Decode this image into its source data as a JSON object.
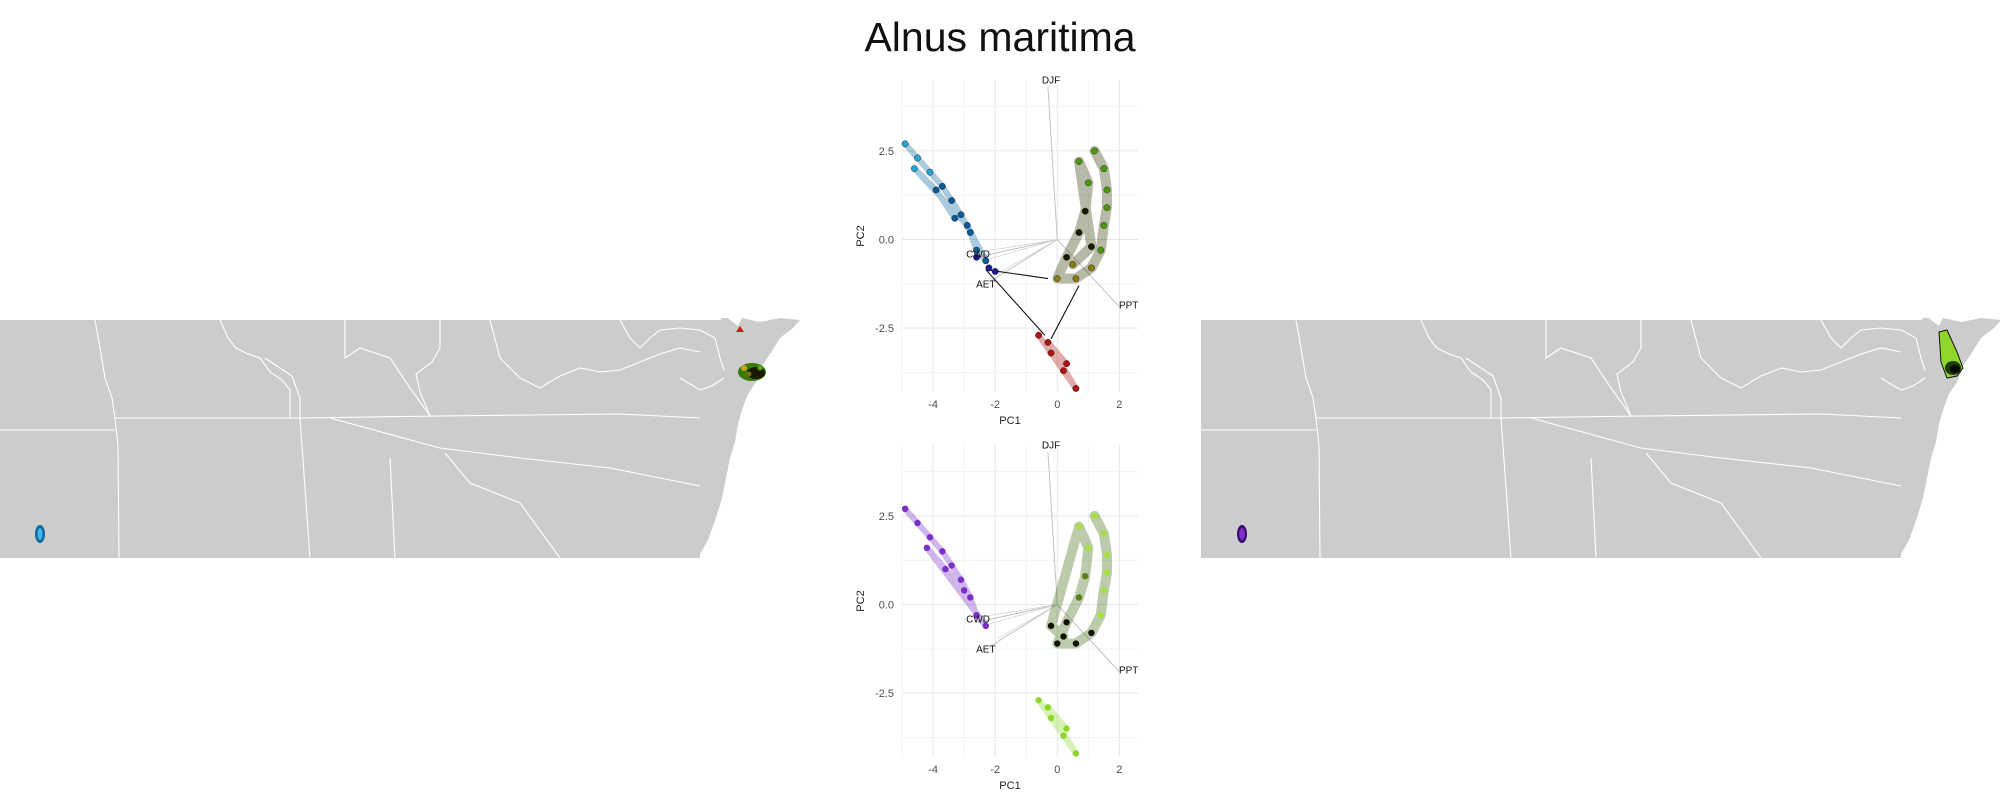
{
  "title": "Alnus maritima",
  "colors": {
    "land": "#cccccc",
    "border": "#ffffff",
    "cluster_blue": "#0b6aa0",
    "cluster_navy": "#1a1a8c",
    "cluster_red": "#b01212",
    "cluster_green": "#4a9a0a",
    "cluster_purple": "#7b2fc9",
    "cluster_lime": "#8ed62a"
  },
  "maps": [
    {
      "name": "left-map",
      "occurrence_clusters": [
        "blue",
        "green-yellow",
        "red"
      ]
    },
    {
      "name": "right-map",
      "occurrence_clusters": [
        "purple",
        "lime-black"
      ]
    }
  ],
  "chart_data": [
    {
      "type": "scatter",
      "name": "pca-top",
      "title": "",
      "xlabel": "PC1",
      "ylabel": "PC2",
      "xlim": [
        -5.0,
        2.6
      ],
      "ylim": [
        -4.3,
        4.5
      ],
      "xticks": [
        -4,
        -2,
        0,
        2
      ],
      "yticks": [
        2.5,
        0.0,
        -2.5
      ],
      "xtick_labels": [
        "-4",
        "-2",
        "0",
        "2"
      ],
      "ytick_labels": [
        "2.5",
        "0.0",
        "-2.5"
      ],
      "grid": true,
      "hull_outlines": true,
      "clusters": [
        {
          "color": "blue",
          "points": [
            [
              -4.9,
              2.7
            ],
            [
              -4.5,
              2.3
            ],
            [
              -4.1,
              1.9
            ],
            [
              -3.7,
              1.5
            ],
            [
              -3.4,
              1.1
            ],
            [
              -3.1,
              0.7
            ],
            [
              -2.8,
              0.2
            ],
            [
              -2.6,
              -0.3
            ],
            [
              -2.3,
              -0.6
            ],
            [
              -2.9,
              0.4
            ],
            [
              -4.6,
              2.0
            ],
            [
              -3.9,
              1.4
            ],
            [
              -3.3,
              0.6
            ]
          ]
        },
        {
          "color": "navy",
          "points": [
            [
              -2.6,
              -0.5
            ],
            [
              -2.2,
              -0.8
            ],
            [
              -2.0,
              -0.9
            ]
          ]
        },
        {
          "color": "red",
          "points": [
            [
              -0.6,
              -2.7
            ],
            [
              -0.2,
              -3.2
            ],
            [
              0.2,
              -3.7
            ],
            [
              0.6,
              -4.2
            ],
            [
              -0.3,
              -2.9
            ],
            [
              0.3,
              -3.5
            ]
          ]
        },
        {
          "color": "green-black",
          "points": [
            [
              1.2,
              2.5
            ],
            [
              1.5,
              2.0
            ],
            [
              1.6,
              1.4
            ],
            [
              1.6,
              0.9
            ],
            [
              1.5,
              0.4
            ],
            [
              1.4,
              -0.3
            ],
            [
              1.1,
              -0.8
            ],
            [
              0.6,
              -1.1
            ],
            [
              0.0,
              -1.1
            ],
            [
              0.3,
              -0.5
            ],
            [
              0.7,
              0.2
            ],
            [
              0.9,
              0.8
            ],
            [
              1.0,
              1.6
            ],
            [
              0.7,
              2.2
            ],
            [
              1.1,
              -0.2
            ],
            [
              0.5,
              -0.7
            ]
          ]
        }
      ],
      "hull_edges": [
        [
          [
            -2.3,
            -0.85
          ],
          [
            -0.3,
            -1.1
          ]
        ],
        [
          [
            -2.3,
            -0.85
          ],
          [
            -0.4,
            -2.7
          ]
        ],
        [
          [
            0.7,
            -1.3
          ],
          [
            -0.2,
            -2.8
          ]
        ]
      ],
      "variables": [
        {
          "label": "DJF",
          "x": -0.3,
          "y": 4.3
        },
        {
          "label": "AET",
          "x": -2.2,
          "y": -1.2
        },
        {
          "label": "CWD",
          "x": -2.6,
          "y": -0.5
        },
        {
          "label": "PPT",
          "x": 2.0,
          "y": -1.9
        }
      ],
      "variable_labels_at": [
        {
          "label": "DJF",
          "x": -0.2,
          "y": 4.4
        },
        {
          "label": "AET",
          "x": -2.3,
          "y": -1.35
        },
        {
          "label": "CWD",
          "x": -2.55,
          "y": -0.5
        },
        {
          "label": "PPT",
          "x": 2.3,
          "y": -1.95
        }
      ]
    },
    {
      "type": "scatter",
      "name": "pca-bottom",
      "title": "",
      "xlabel": "PC1",
      "ylabel": "PC2",
      "xlim": [
        -5.0,
        2.6
      ],
      "ylim": [
        -4.3,
        4.5
      ],
      "xticks": [
        -4,
        -2,
        0,
        2
      ],
      "yticks": [
        2.5,
        0.0,
        -2.5
      ],
      "xtick_labels": [
        "-4",
        "-2",
        "0",
        "2"
      ],
      "ytick_labels": [
        "2.5",
        "0.0",
        "-2.5"
      ],
      "grid": true,
      "hull_outlines": false,
      "clusters": [
        {
          "color": "purple",
          "points": [
            [
              -4.9,
              2.7
            ],
            [
              -4.5,
              2.3
            ],
            [
              -4.1,
              1.9
            ],
            [
              -3.7,
              1.5
            ],
            [
              -3.4,
              1.1
            ],
            [
              -3.1,
              0.7
            ],
            [
              -2.8,
              0.2
            ],
            [
              -2.6,
              -0.3
            ],
            [
              -2.3,
              -0.6
            ],
            [
              -4.2,
              1.6
            ],
            [
              -3.6,
              1.0
            ],
            [
              -3.0,
              0.4
            ]
          ]
        },
        {
          "color": "lime",
          "points": [
            [
              -0.6,
              -2.7
            ],
            [
              -0.2,
              -3.2
            ],
            [
              0.2,
              -3.7
            ],
            [
              0.6,
              -4.2
            ],
            [
              -0.3,
              -2.9
            ],
            [
              0.3,
              -3.5
            ]
          ]
        },
        {
          "color": "lime-black",
          "points": [
            [
              1.2,
              2.5
            ],
            [
              1.5,
              2.0
            ],
            [
              1.6,
              1.4
            ],
            [
              1.6,
              0.9
            ],
            [
              1.5,
              0.4
            ],
            [
              1.4,
              -0.3
            ],
            [
              1.1,
              -0.8
            ],
            [
              0.6,
              -1.1
            ],
            [
              0.0,
              -1.1
            ],
            [
              0.3,
              -0.5
            ],
            [
              0.7,
              0.2
            ],
            [
              0.9,
              0.8
            ],
            [
              1.0,
              1.6
            ],
            [
              0.7,
              2.2
            ],
            [
              -0.2,
              -0.6
            ],
            [
              0.2,
              -0.9
            ]
          ]
        }
      ],
      "hull_edges": [],
      "variables": [
        {
          "label": "DJF",
          "x": -0.3,
          "y": 4.3
        },
        {
          "label": "AET",
          "x": -2.2,
          "y": -1.2
        },
        {
          "label": "CWD",
          "x": -2.6,
          "y": -0.5
        },
        {
          "label": "PPT",
          "x": 2.0,
          "y": -1.9
        }
      ],
      "variable_labels_at": [
        {
          "label": "DJF",
          "x": -0.2,
          "y": 4.4
        },
        {
          "label": "AET",
          "x": -2.3,
          "y": -1.35
        },
        {
          "label": "CWD",
          "x": -2.55,
          "y": -0.5
        },
        {
          "label": "PPT",
          "x": 2.3,
          "y": -1.95
        }
      ]
    }
  ]
}
